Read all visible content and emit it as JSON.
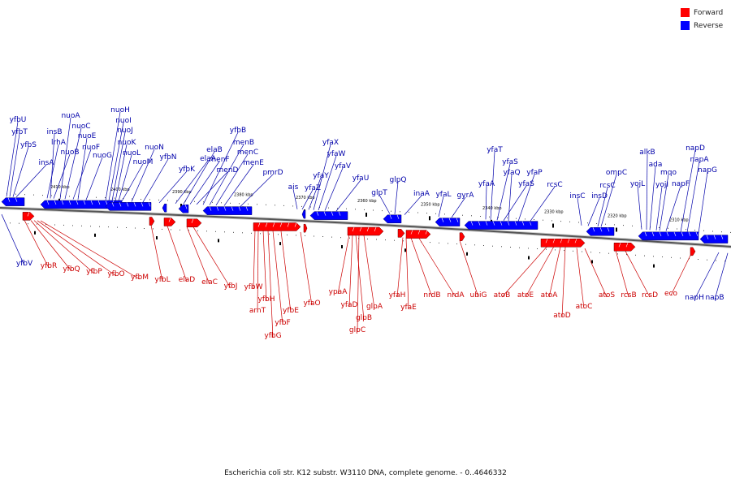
{
  "legend": [
    {
      "label": "Forward",
      "color": "#ff0000"
    },
    {
      "label": "Reverse",
      "color": "#0000ff"
    }
  ],
  "caption": "Escherichia coli str. K12 substr. W3110 DNA, complete genome. - 0..4646332",
  "colors": {
    "forward": "#ff0000",
    "reverse": "#0000ff",
    "backbone": "#555555",
    "label_forward": "#cc0000",
    "label_reverse": "#0000aa"
  },
  "scale_ticks": [
    "2410 kbp",
    "2400 kbp",
    "2390 kbp",
    "2380 kbp",
    "2370 kbp",
    "2360 kbp",
    "2350 kbp",
    "2340 kbp",
    "2330 kbp",
    "2320 kbp",
    "2310 kbp"
  ],
  "reverse_genes": [
    "yfbU",
    "yfbT",
    "yfbS",
    "insA",
    "lrhA",
    "insB",
    "nuoB",
    "nuoA",
    "nuoC",
    "nuoF",
    "nuoE",
    "nuoG",
    "nuoH",
    "nuoI",
    "nuoJ",
    "nuoK",
    "nuoL",
    "nuoM",
    "nuoN",
    "yfbN",
    "yfbK",
    "elaA",
    "elaB",
    "menF",
    "menD",
    "yfbB",
    "menB",
    "menC",
    "menE",
    "pmrD",
    "ais",
    "yfaZ",
    "yfaY",
    "yfaX",
    "yfaW",
    "yfaV",
    "yfaU",
    "glpT",
    "glpQ",
    "inaA",
    "yfaL",
    "gyrA",
    "yfaA",
    "yfaT",
    "yfaS",
    "yfaS",
    "yfaQ",
    "yfaP",
    "rcsC",
    "insC",
    "insD",
    "rcsC",
    "ompC",
    "yojL",
    "alkB",
    "ada",
    "yojI",
    "mqo",
    "napF",
    "napD",
    "napA",
    "napG"
  ],
  "reverse_genes_below": [
    "yfbV",
    "napH",
    "napB"
  ],
  "forward_genes": [
    "yfbR",
    "yfbQ",
    "yfbP",
    "yfbO",
    "yfbM",
    "yfbL",
    "elaD",
    "elaC",
    "yfbJ",
    "yfbW",
    "arnT",
    "yfbH",
    "yfbG",
    "yfbF",
    "yfbE",
    "yfaO",
    "ypaA",
    "yfaD",
    "glpB",
    "glpC",
    "glpA",
    "yfaH",
    "yfaE",
    "nrdB",
    "nrdA",
    "ubiG",
    "atoB",
    "atoE",
    "atoA",
    "atoD",
    "atoC",
    "atoS",
    "rcsB",
    "rcsD",
    "eco"
  ]
}
